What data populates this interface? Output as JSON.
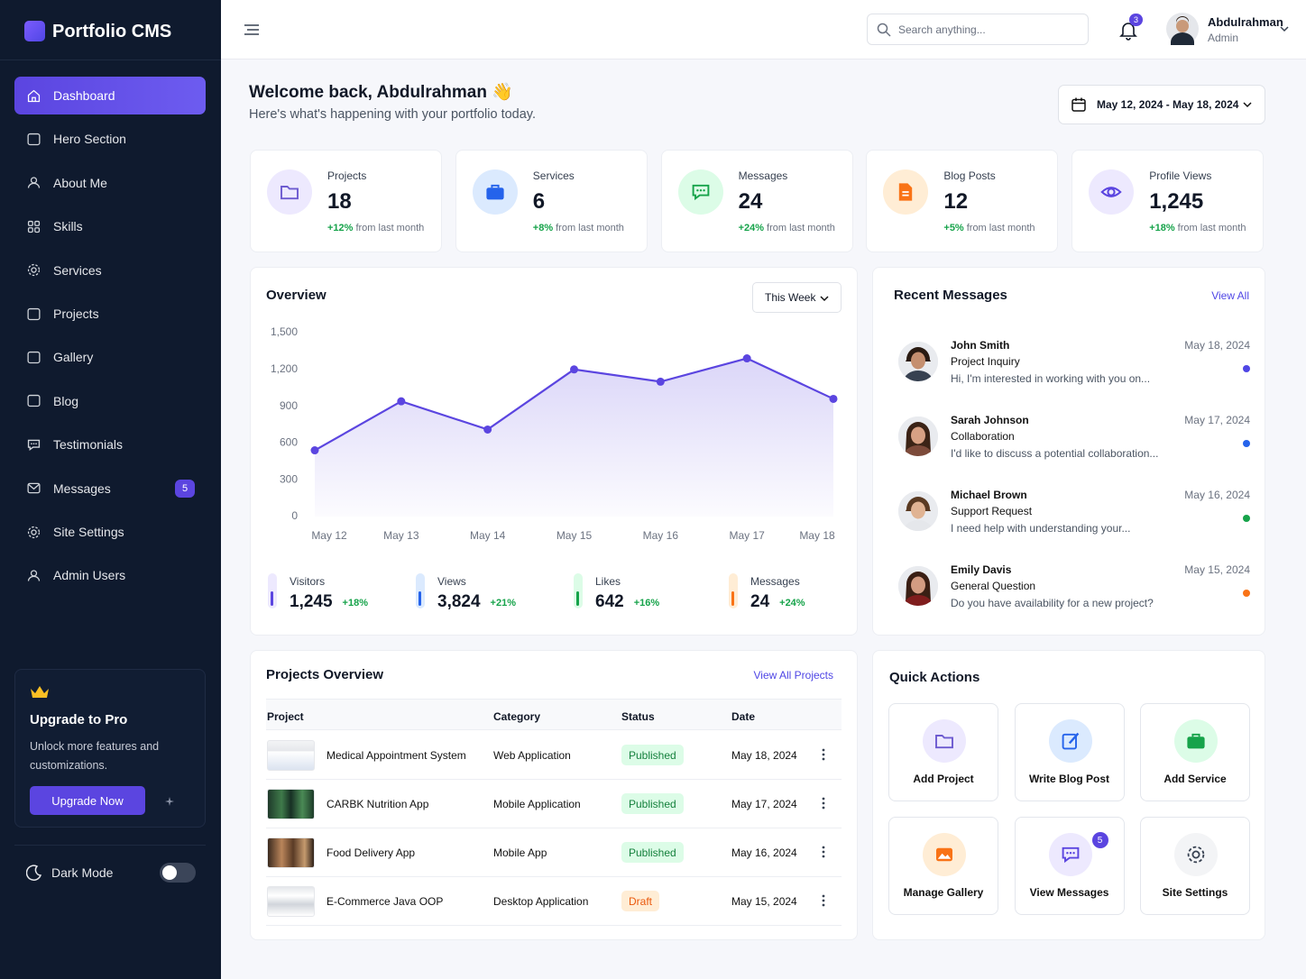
{
  "sidebar": {
    "brand": "Portfolio CMS",
    "nav": [
      {
        "label": "Dashboard"
      },
      {
        "label": "Hero Section"
      },
      {
        "label": "About Me"
      },
      {
        "label": "Skills"
      },
      {
        "label": "Services"
      },
      {
        "label": "Projects"
      },
      {
        "label": "Gallery"
      },
      {
        "label": "Blog"
      },
      {
        "label": "Testimonials"
      },
      {
        "label": "Messages",
        "badge": 5
      },
      {
        "label": "Site Settings"
      },
      {
        "label": "Admin Users"
      }
    ],
    "upgrade": {
      "title": "Upgrade to Pro",
      "text": "Unlock more features and customizations.",
      "button": "Upgrade Now"
    },
    "dark_mode": "Dark Mode"
  },
  "header": {
    "search_placeholder": "Search anything...",
    "notifications": 3,
    "user": {
      "name": "Abdulrahman",
      "role": "Admin"
    }
  },
  "welcome": {
    "title": "Welcome back, Abdulrahman 👋",
    "subtitle": "Here's what's happening with your portfolio today.",
    "date_range": "May 12, 2024 - May 18, 2024"
  },
  "stats": [
    {
      "label": "Projects",
      "value": 18,
      "change": "+12%",
      "note": "from last month"
    },
    {
      "label": "Services",
      "value": 6,
      "change": "+8%",
      "note": "from last month"
    },
    {
      "label": "Messages",
      "value": 24,
      "change": "+24%",
      "note": "from last month"
    },
    {
      "label": "Blog Posts",
      "value": 12,
      "change": "+5%",
      "note": "from last month"
    },
    {
      "label": "Profile Views",
      "value": "1,245",
      "change": "+18%",
      "note": "from last month"
    }
  ],
  "chart_data": {
    "type": "line",
    "title": "Overview",
    "period": "This Week",
    "categories": [
      "May 12",
      "May 13",
      "May 14",
      "May 15",
      "May 16",
      "May 17",
      "May 18"
    ],
    "values": [
      540,
      940,
      710,
      1200,
      1100,
      1290,
      960
    ],
    "color": "#5b45e0",
    "ylim": [
      0,
      1500
    ],
    "yticks": [
      0,
      300,
      600,
      900,
      {
        "value": 1200,
        "label": "1,200"
      },
      {
        "value": 1500,
        "label": "1,500"
      }
    ],
    "grid": false
  },
  "summary": [
    {
      "label": "Visitors",
      "value": "1,245",
      "change": "+18%"
    },
    {
      "label": "Views",
      "value": "3,824",
      "change": "+21%"
    },
    {
      "label": "Likes",
      "value": 642,
      "change": "+16%"
    },
    {
      "label": "Messages",
      "value": 24,
      "change": "+24%"
    }
  ],
  "messages": {
    "title": "Recent Messages",
    "link": "View All",
    "items": [
      {
        "name": "John Smith",
        "subject": "Project Inquiry",
        "preview": "Hi, I'm interested in working with you on...",
        "date": "May 18, 2024"
      },
      {
        "name": "Sarah Johnson",
        "subject": "Collaboration",
        "preview": "I'd like to discuss a potential collaboration...",
        "date": "May 17, 2024"
      },
      {
        "name": "Michael Brown",
        "subject": "Support Request",
        "preview": "I need help with understanding your...",
        "date": "May 16, 2024"
      },
      {
        "name": "Emily Davis",
        "subject": "General Question",
        "preview": "Do you have availability for a new project?",
        "date": "May 15, 2024"
      }
    ]
  },
  "projects": {
    "title": "Projects Overview",
    "link": "View All Projects",
    "columns": [
      "Project",
      "Category",
      "Status",
      "Date"
    ],
    "rows": [
      [
        "Medical Appointment System",
        "Web Application",
        "Published",
        "May 18, 2024"
      ],
      [
        "CARBK Nutrition App",
        "Mobile Application",
        "Published",
        "May 17, 2024"
      ],
      [
        "Food Delivery App",
        "Mobile App",
        "Published",
        "May 16, 2024"
      ],
      [
        "E-Commerce Java OOP",
        "Desktop Application",
        "Draft",
        "May 15, 2024"
      ]
    ]
  },
  "quick_actions": {
    "title": "Quick Actions",
    "items": [
      {
        "label": "Add Project"
      },
      {
        "label": "Write Blog Post"
      },
      {
        "label": "Add Service"
      },
      {
        "label": "Manage Gallery"
      },
      {
        "label": "View Messages",
        "badge": 5
      },
      {
        "label": "Site Settings"
      }
    ]
  }
}
